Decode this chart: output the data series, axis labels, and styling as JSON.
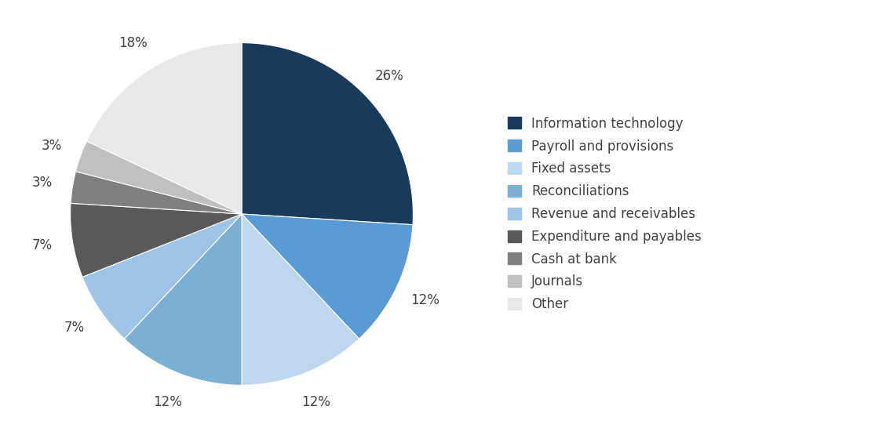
{
  "labels": [
    "Information technology",
    "Payroll and provisions",
    "Fixed assets",
    "Reconciliations",
    "Revenue and receivables",
    "Expenditure and payables",
    "Cash at bank",
    "Journals",
    "Other"
  ],
  "values": [
    26,
    12,
    12,
    12,
    7,
    7,
    3,
    3,
    18
  ],
  "colors": [
    "#1a3a5c",
    "#5b9bd5",
    "#bdd7ee",
    "#7bafd4",
    "#9dc3e6",
    "#595959",
    "#808080",
    "#c0c0c0",
    "#e8e8e8"
  ],
  "startangle": 90,
  "counterclock": false,
  "background_color": "#ffffff",
  "text_color": "#404040",
  "font_size": 12,
  "legend_font_size": 12
}
